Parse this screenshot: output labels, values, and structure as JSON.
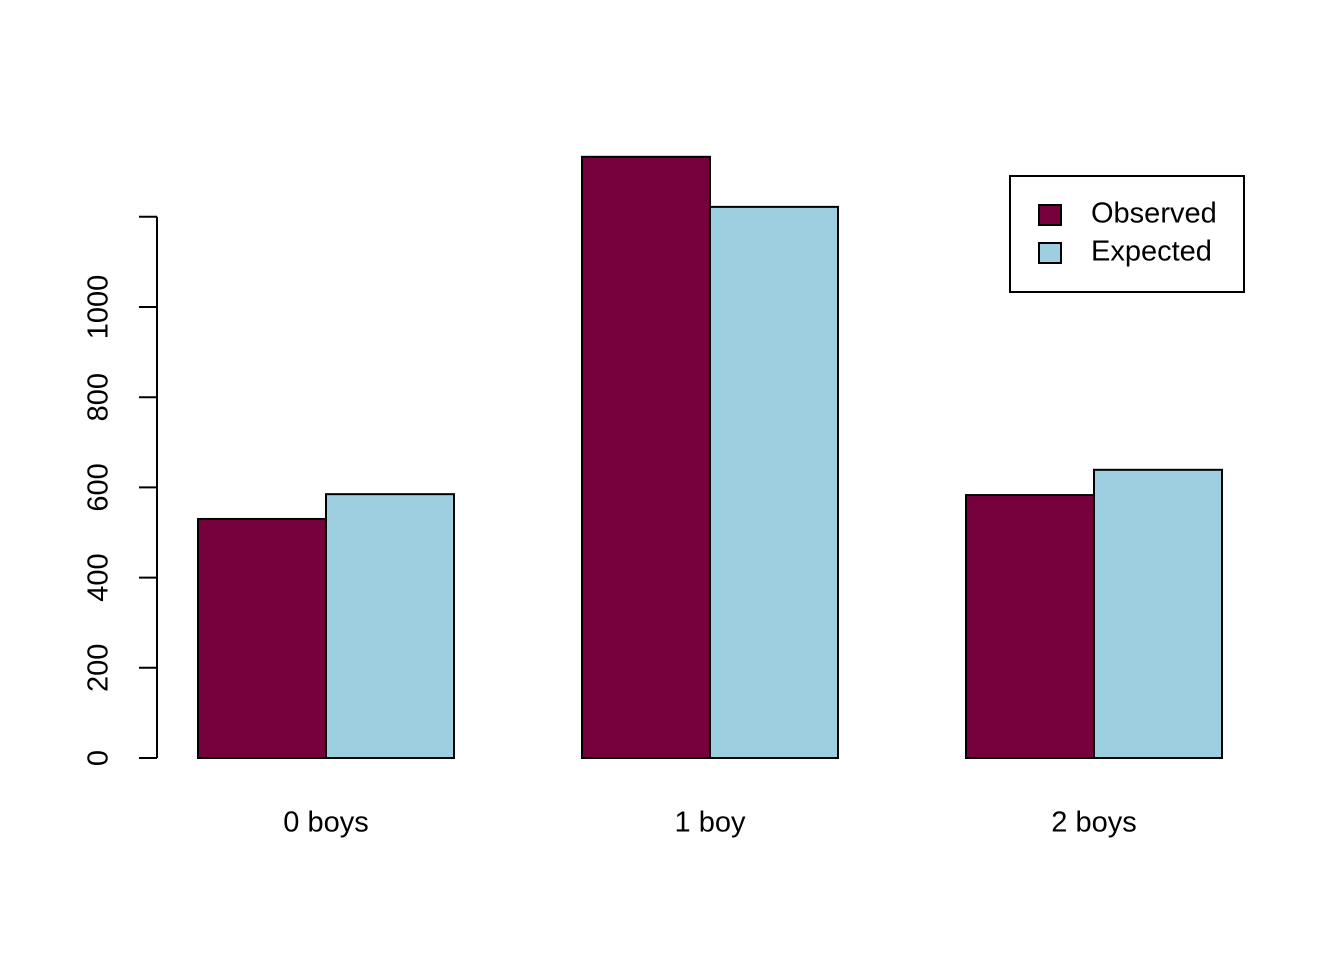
{
  "chart_data": {
    "type": "bar",
    "categories": [
      "0 boys",
      "1 boy",
      "2 boys"
    ],
    "series": [
      {
        "name": "Observed",
        "color": "#76003b",
        "values": [
          530,
          1333,
          583
        ]
      },
      {
        "name": "Expected",
        "color": "#9ecfe0",
        "values": [
          585,
          1222,
          639
        ]
      }
    ],
    "ylim": [
      0,
      1400
    ],
    "yticks": [
      0,
      200,
      400,
      600,
      800,
      1000,
      {
        "value": 1200,
        "label": null
      }
    ],
    "legend": "top-right",
    "grid": false
  }
}
